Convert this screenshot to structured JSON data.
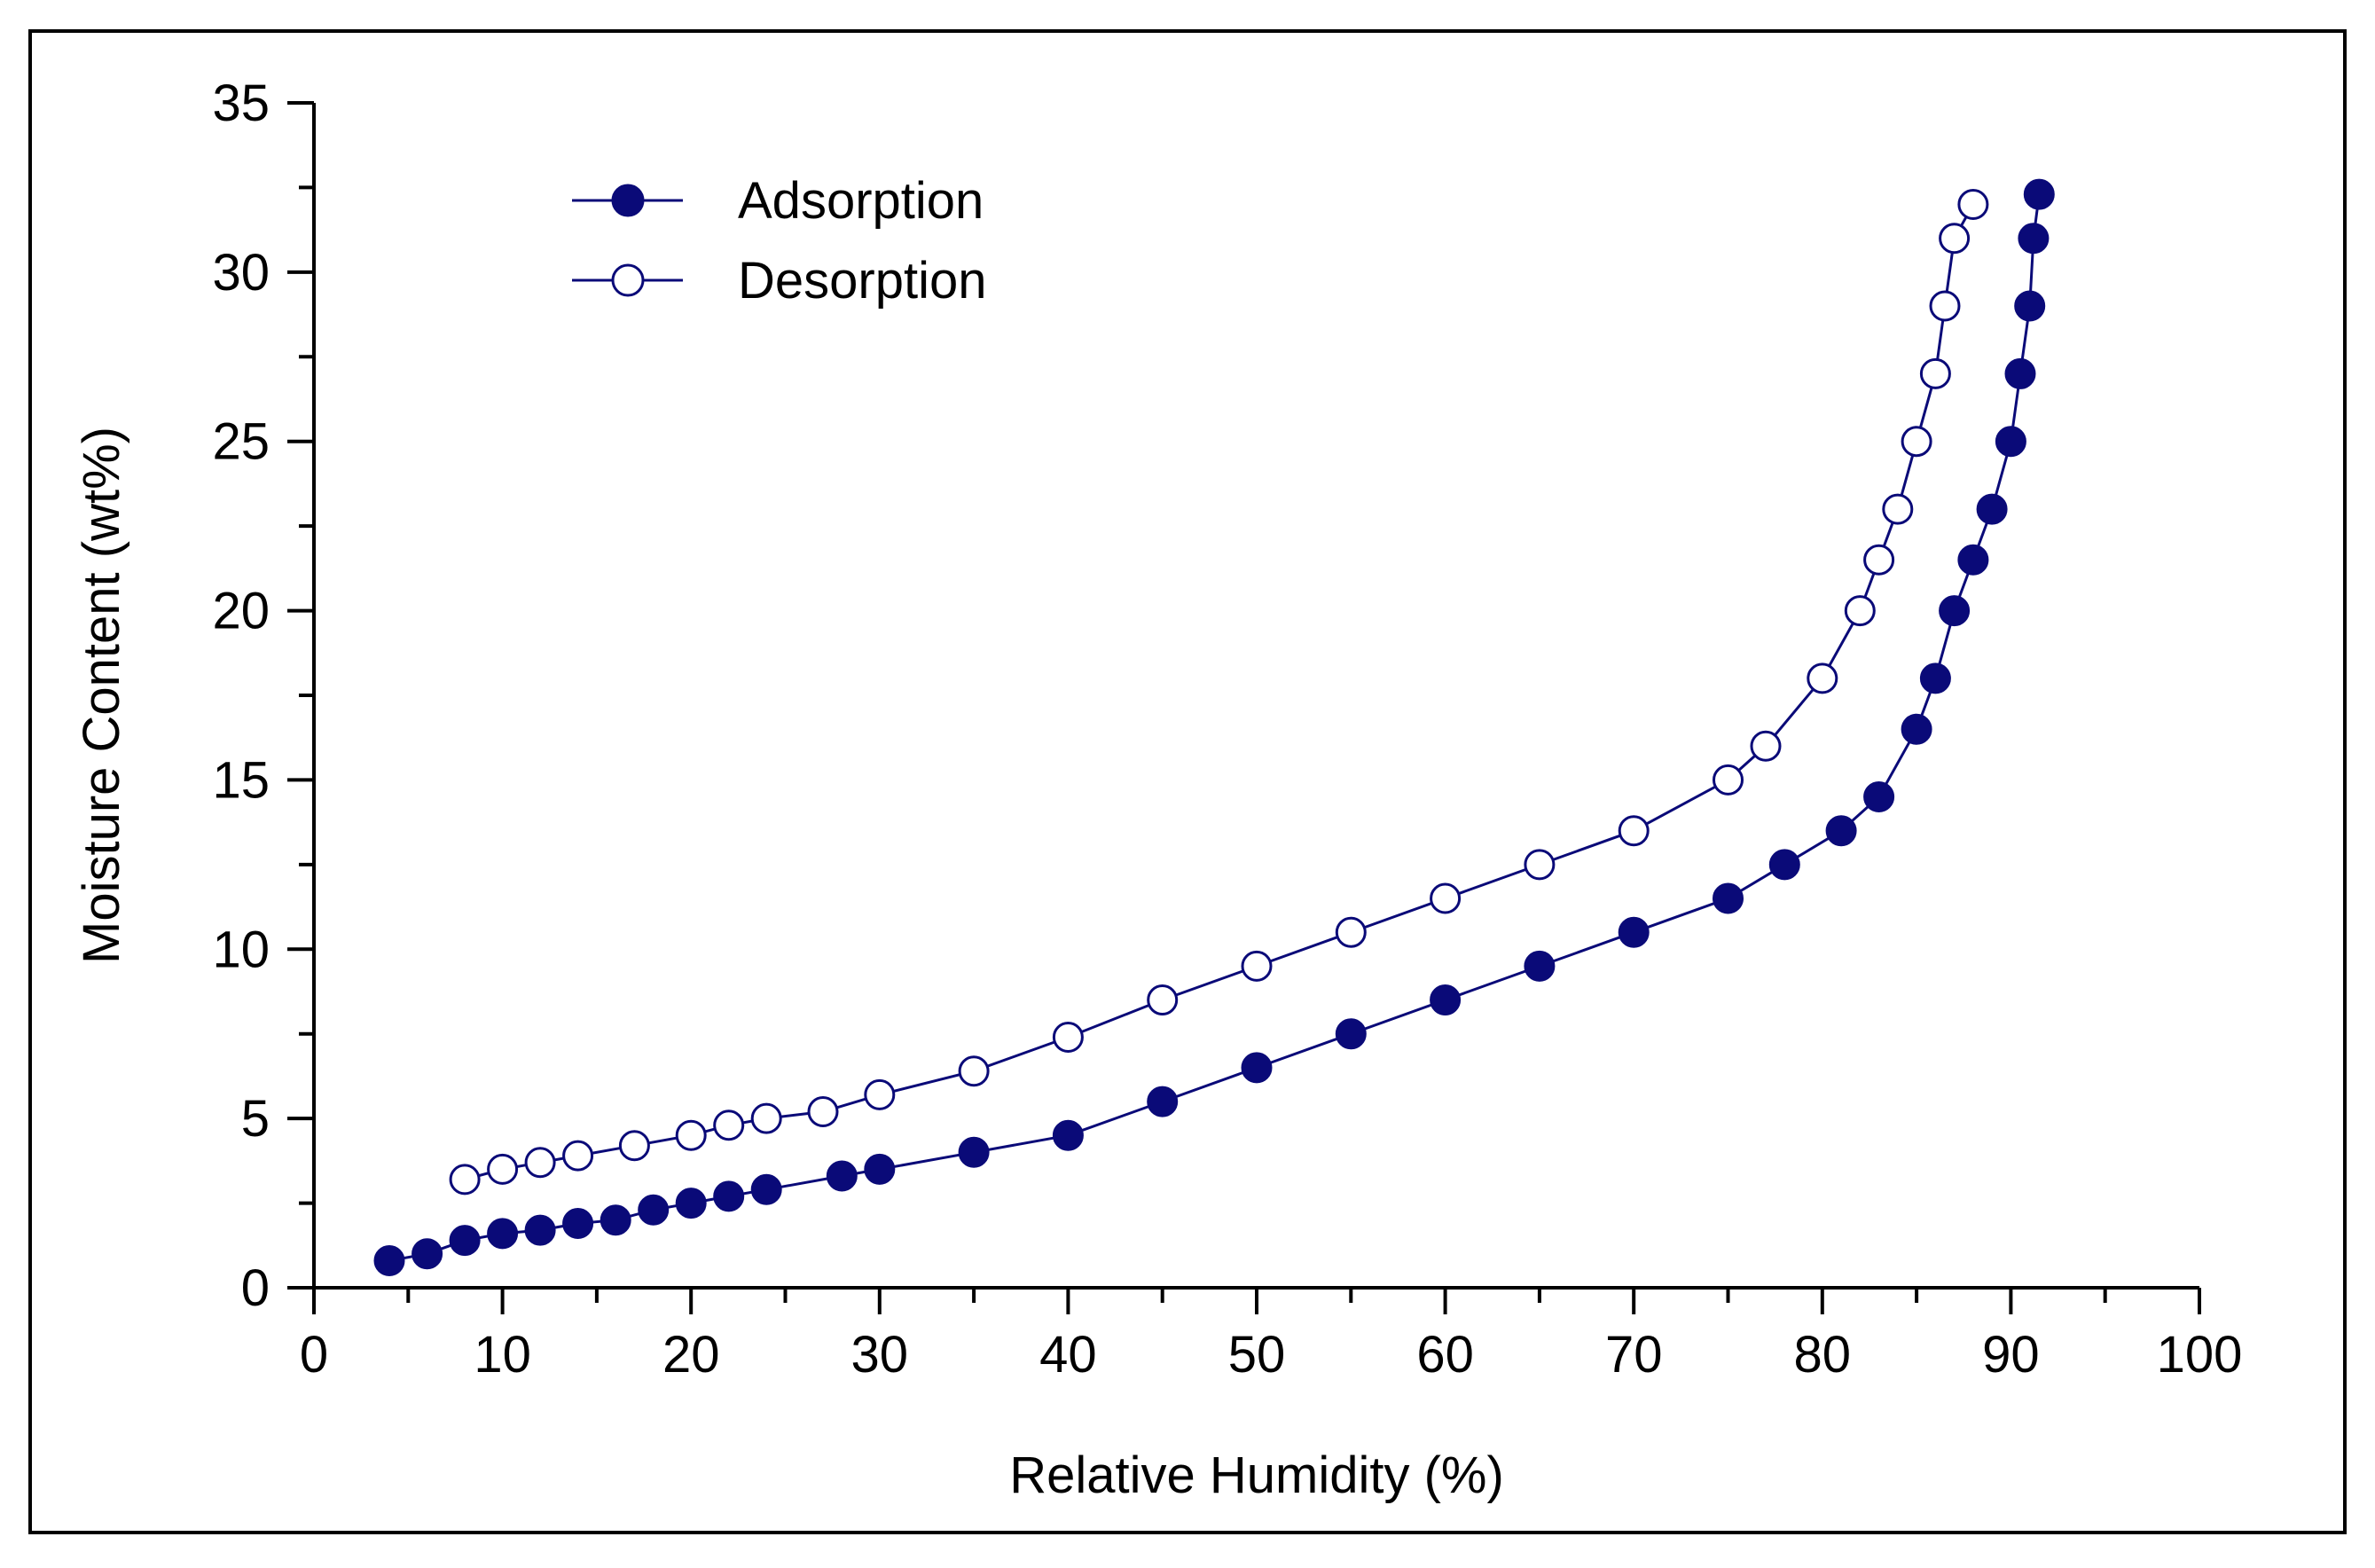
{
  "chart_data": {
    "type": "line",
    "title": "",
    "xlabel": "Relative Humidity (%)",
    "ylabel": "Moisture Content (wt%)",
    "xlim": [
      0,
      100
    ],
    "ylim": [
      0,
      35
    ],
    "x_ticks": [
      0,
      10,
      20,
      30,
      40,
      50,
      60,
      70,
      80,
      90,
      100
    ],
    "y_ticks": [
      0,
      5,
      10,
      15,
      20,
      25,
      30,
      35
    ],
    "x_tick_labels": [
      "0",
      "10",
      "20",
      "30",
      "40",
      "50",
      "60",
      "70",
      "80",
      "90",
      "100"
    ],
    "y_tick_labels": [
      "0",
      "5",
      "10",
      "15",
      "20",
      "25",
      "30",
      "35"
    ],
    "grid": false,
    "legend_position": "top-left",
    "series": [
      {
        "name": "Adsorption",
        "marker": "filled-circle",
        "color": "#0a0a78",
        "x": [
          4,
          6,
          8,
          10,
          12,
          14,
          16,
          18,
          20,
          22,
          24,
          28,
          30,
          35,
          40,
          45,
          50,
          55,
          60,
          65,
          70,
          75,
          78,
          81,
          83,
          85,
          86,
          87,
          88,
          89,
          90,
          90.5,
          91,
          91.2,
          91.5
        ],
        "y": [
          0.8,
          1.0,
          1.4,
          1.6,
          1.7,
          1.9,
          2.0,
          2.3,
          2.5,
          2.7,
          2.9,
          3.3,
          3.5,
          4.0,
          4.5,
          5.5,
          6.5,
          7.5,
          8.5,
          9.5,
          10.5,
          11.5,
          12.5,
          13.5,
          14.5,
          16.5,
          18.0,
          20.0,
          21.5,
          23.0,
          25.0,
          27.0,
          29.0,
          31.0,
          32.3
        ]
      },
      {
        "name": "Desorption",
        "marker": "open-circle",
        "color": "#0a0a78",
        "x": [
          8,
          10,
          12,
          14,
          17,
          20,
          22,
          24,
          27,
          30,
          35,
          40,
          45,
          50,
          55,
          60,
          65,
          70,
          75,
          77,
          80,
          82,
          83,
          84,
          85,
          86,
          86.5,
          87,
          88
        ],
        "y": [
          3.2,
          3.5,
          3.7,
          3.9,
          4.2,
          4.5,
          4.8,
          5.0,
          5.2,
          5.7,
          6.4,
          7.4,
          8.5,
          9.5,
          10.5,
          11.5,
          12.5,
          13.5,
          15.0,
          16.0,
          18.0,
          20.0,
          21.5,
          23.0,
          25.0,
          27.0,
          29.0,
          31.0,
          32.0
        ]
      }
    ]
  }
}
